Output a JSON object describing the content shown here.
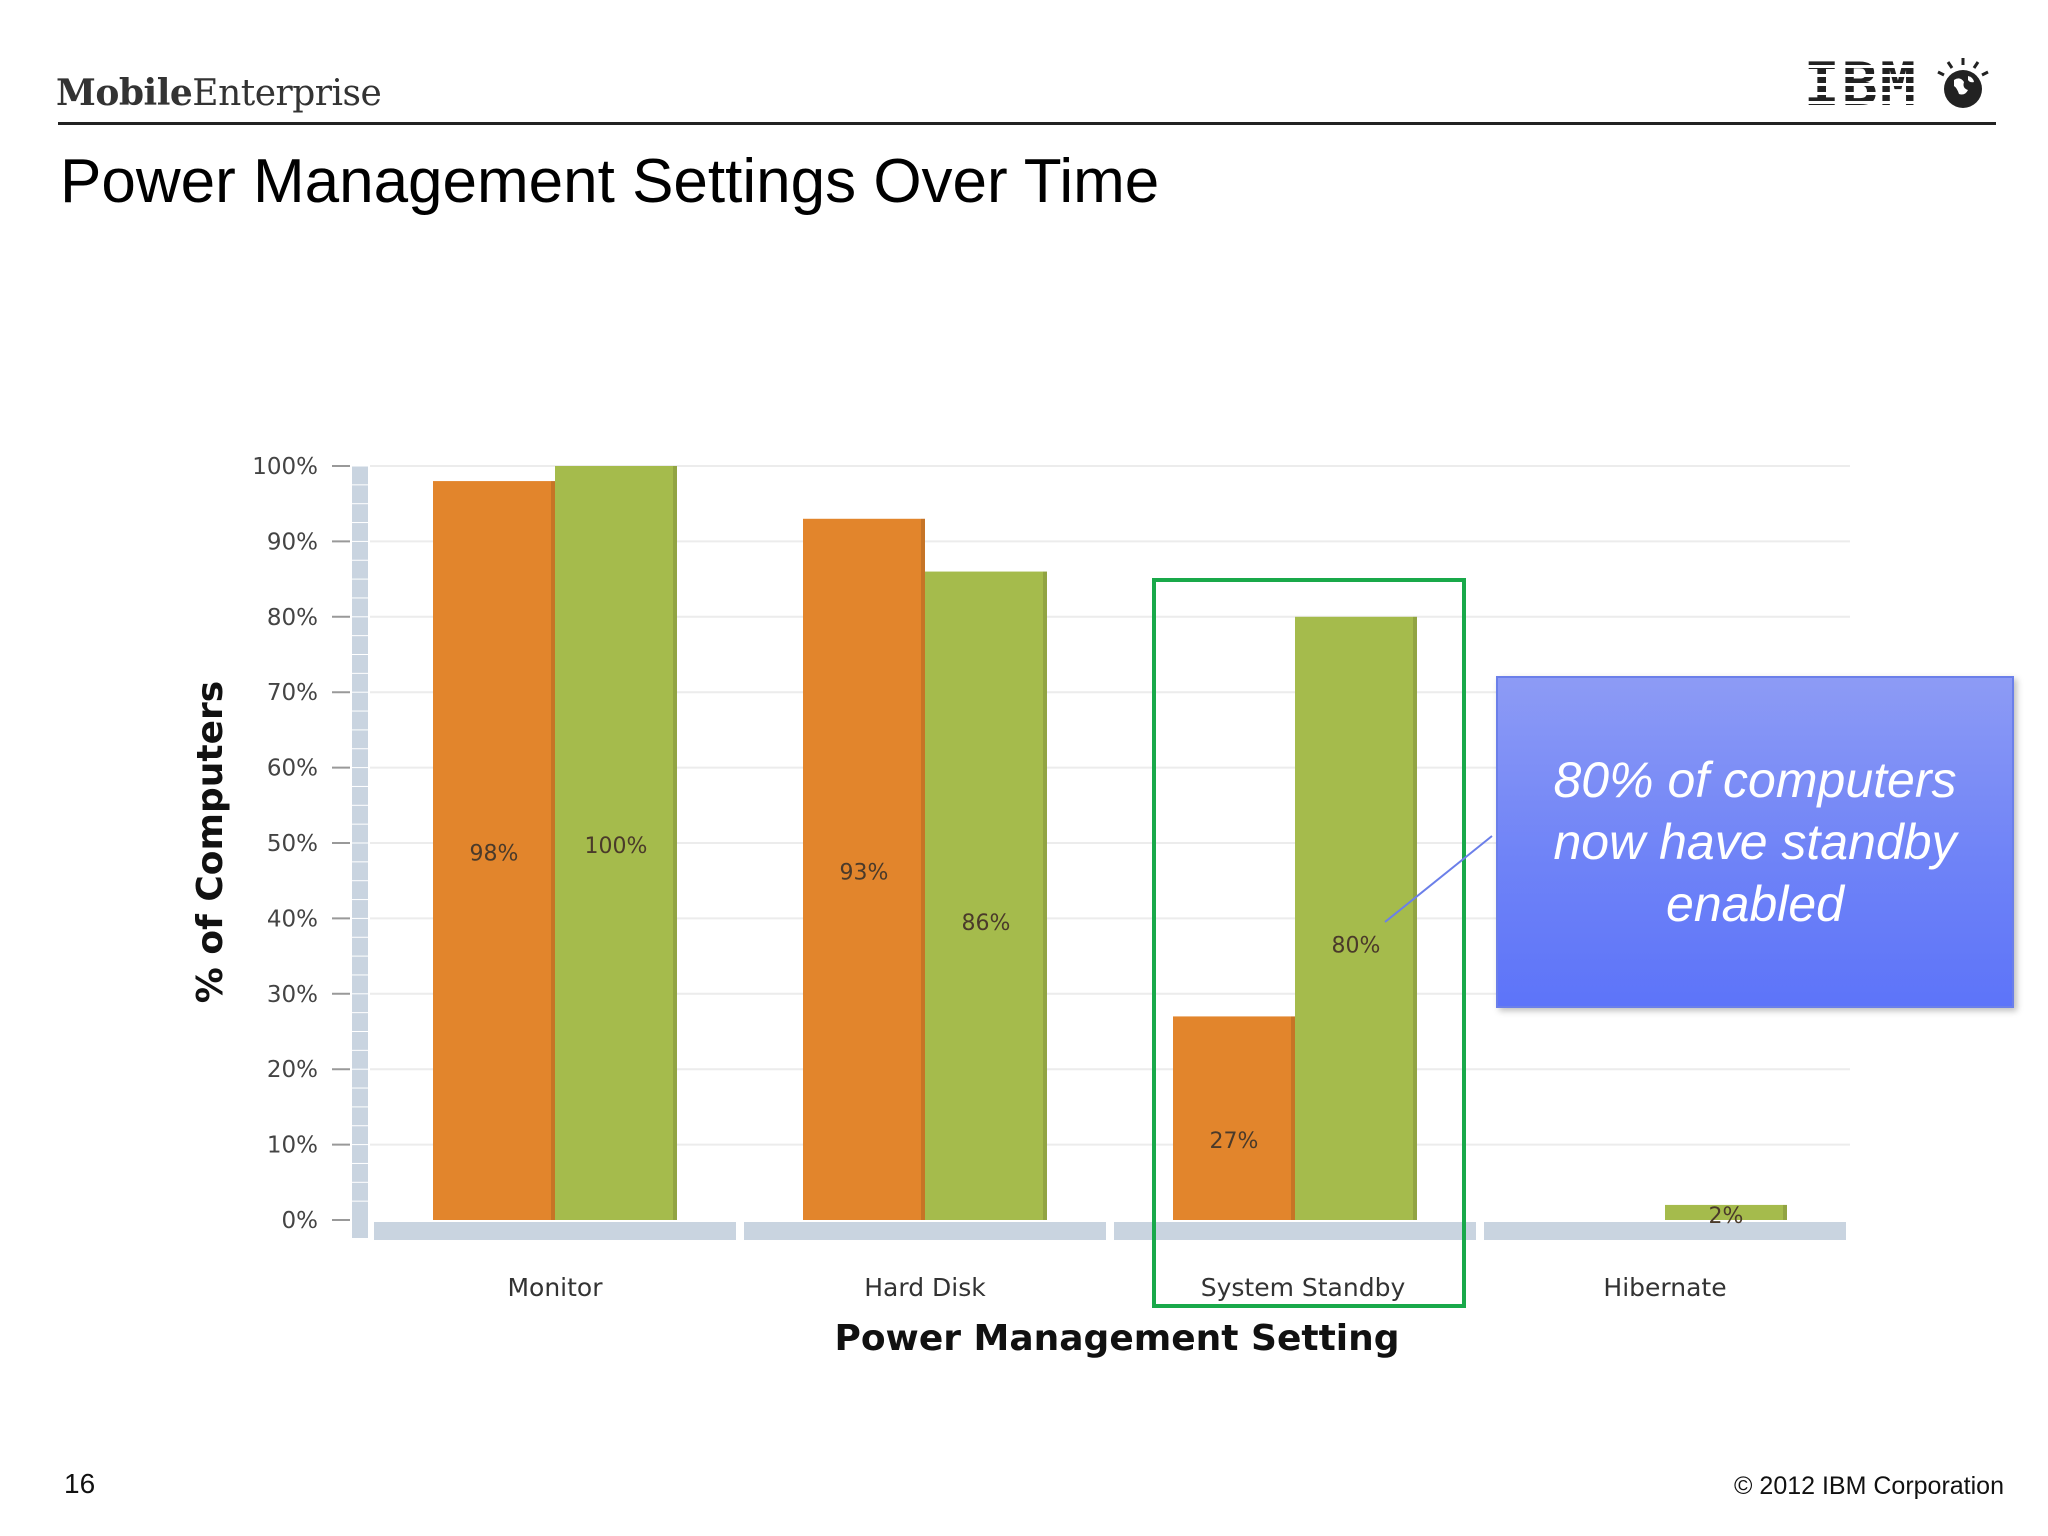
{
  "header": {
    "brand_bold": "Mobile",
    "brand_regular": "Enterprise",
    "logo_text": "IBM",
    "title": "Power Management Settings Over Time"
  },
  "chart_data": {
    "type": "bar",
    "title": "",
    "xlabel": "Power Management Setting",
    "ylabel": "% of Computers",
    "ylim": [
      0,
      100
    ],
    "yticks": [
      "0%",
      "10%",
      "20%",
      "30%",
      "40%",
      "50%",
      "60%",
      "70%",
      "80%",
      "90%",
      "100%"
    ],
    "categories": [
      "Monitor",
      "Hard Disk",
      "System Standby",
      "Hibernate"
    ],
    "series": [
      {
        "color": "#e2852c",
        "values": [
          98,
          93,
          27,
          null
        ],
        "labels": [
          "98%",
          "93%",
          "27%",
          ""
        ]
      },
      {
        "color": "#a5bb4c",
        "values": [
          100,
          86,
          80,
          2
        ],
        "labels": [
          "100%",
          "86%",
          "80%",
          "2%"
        ]
      }
    ],
    "grid": true,
    "highlight_category": "System Standby",
    "highlight_color": "#19a94a"
  },
  "callout": {
    "text": "80% of computers now have standby enabled",
    "target_label": "80%"
  },
  "footer": {
    "page_number": "16",
    "copyright": "© 2012 IBM Corporation"
  }
}
